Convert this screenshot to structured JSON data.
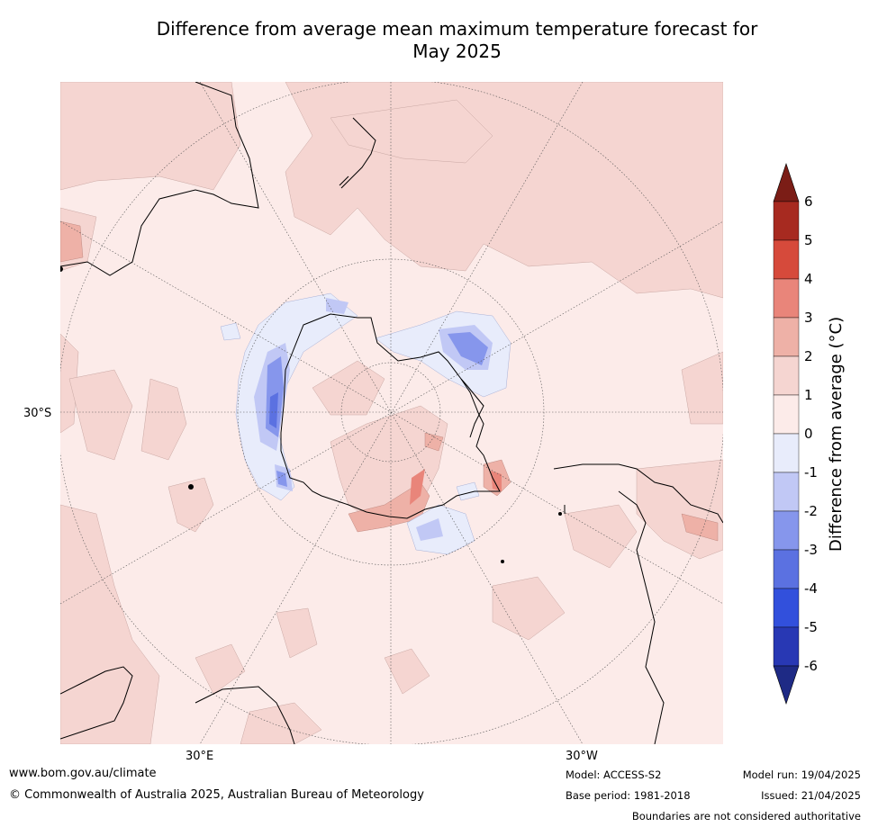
{
  "title_line1": "Difference from average mean maximum temperature forecast for",
  "title_line2": "May 2025",
  "lat_label": "30°S",
  "lon_label_east": "30°E",
  "lon_label_west": "30°W",
  "colorbar": {
    "label": "Difference from average (°C)",
    "ticks": [
      "6",
      "5",
      "4",
      "3",
      "2",
      "1",
      "0",
      "-1",
      "-2",
      "-3",
      "-4",
      "-5",
      "-6"
    ],
    "colors": [
      "#7b1d16",
      "#a72a20",
      "#d64a3b",
      "#e9857a",
      "#eeb1a7",
      "#f5d5d1",
      "#fcebe9",
      "#e8ecfb",
      "#c1c8f5",
      "#8696ec",
      "#5b71e1",
      "#3250dc",
      "#2838b4",
      "#1e2a85"
    ],
    "extend": "both"
  },
  "footer": {
    "website": "www.bom.gov.au/climate",
    "copyright": "© Commonwealth of Australia 2025, Australian Bureau of Meteorology",
    "model": "Model: ACCESS-S2",
    "base_period": "Base period: 1981-2018",
    "model_run": "Model run: 19/04/2025",
    "issued": "Issued: 21/04/2025",
    "disclaimer": "Boundaries are not considered authoritative"
  }
}
